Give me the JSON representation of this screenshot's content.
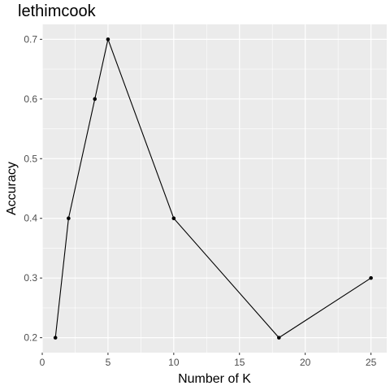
{
  "chart_data": {
    "type": "line",
    "title": "lethimcook",
    "xlabel": "Number of K",
    "ylabel": "Accuracy",
    "xlim": [
      0,
      26.2
    ],
    "ylim": [
      0.175,
      0.725
    ],
    "x_ticks": [
      0,
      5,
      10,
      15,
      20,
      25
    ],
    "x_tick_labels": [
      "0",
      "5",
      "10",
      "15",
      "20",
      "25"
    ],
    "y_ticks": [
      0.2,
      0.3,
      0.4,
      0.5,
      0.6,
      0.7
    ],
    "y_tick_labels": [
      "0.2",
      "0.3",
      "0.4",
      "0.5",
      "0.6",
      "0.7"
    ],
    "grid": true,
    "series": [
      {
        "x": [
          1,
          2,
          4,
          5,
          10,
          18,
          25
        ],
        "y": [
          0.2,
          0.4,
          0.6,
          0.7,
          0.4,
          0.2,
          0.3
        ]
      }
    ],
    "colors": {
      "panel_background": "#ebebeb",
      "grid_major": "#ffffff",
      "line": "#000000",
      "point": "#000000",
      "tick_text": "#4d4d4d"
    }
  }
}
